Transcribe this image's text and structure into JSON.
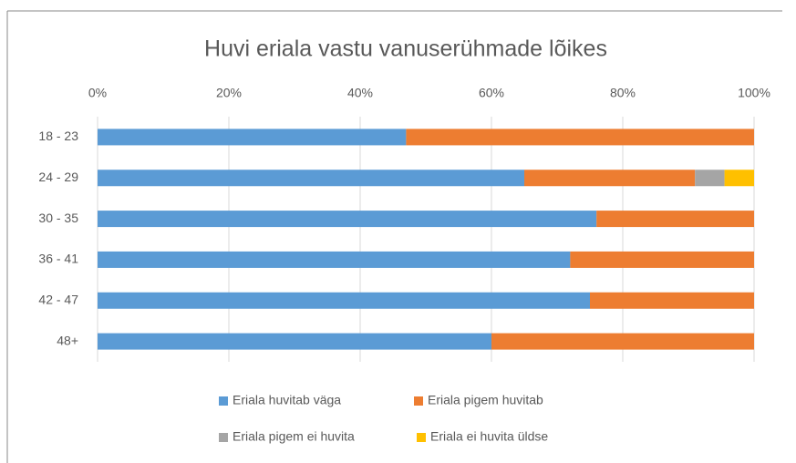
{
  "chart_data": {
    "type": "stacked_bar_horizontal",
    "title": "Huvi eriala vastu vanuserühmade lõikes",
    "categories": [
      "18 - 23",
      "24 - 29",
      "30 - 35",
      "36 - 41",
      "42 - 47",
      "48+"
    ],
    "series": [
      {
        "name": "Eriala huvitab väga",
        "color": "#5b9bd5",
        "values": [
          47,
          65,
          76,
          72,
          75,
          60
        ]
      },
      {
        "name": "Eriala pigem huvitab",
        "color": "#ed7d31",
        "values": [
          53,
          26,
          24,
          28,
          25,
          40
        ]
      },
      {
        "name": "Eriala pigem ei huvita",
        "color": "#a5a5a5",
        "values": [
          0,
          4.5,
          0,
          0,
          0,
          0
        ]
      },
      {
        "name": "Eriala ei huvita üldse",
        "color": "#ffc000",
        "values": [
          0,
          4.5,
          0,
          0,
          0,
          0
        ]
      }
    ],
    "xlim": [
      0,
      100
    ],
    "xticks": [
      {
        "value": 0,
        "label": "0%"
      },
      {
        "value": 20,
        "label": "20%"
      },
      {
        "value": 40,
        "label": "40%"
      },
      {
        "value": 60,
        "label": "60%"
      },
      {
        "value": 80,
        "label": "80%"
      },
      {
        "value": 100,
        "label": "100%"
      }
    ],
    "grid": true,
    "legend": "bottom"
  }
}
